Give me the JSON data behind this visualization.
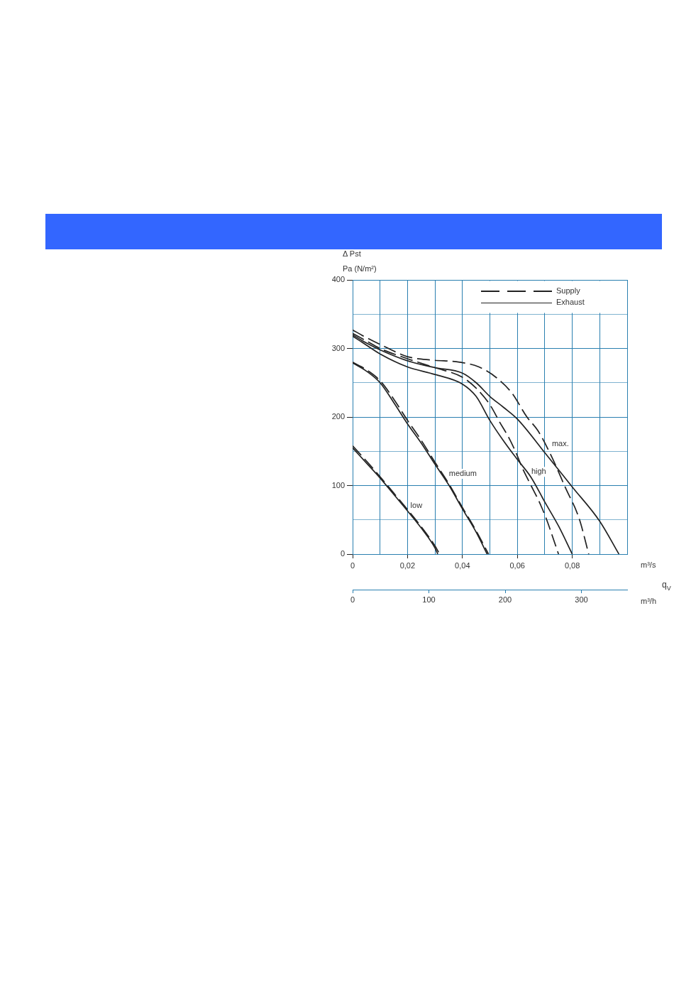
{
  "chart_data": {
    "type": "line",
    "ylabel": "Δ Pst\nPa (N/m²)",
    "xlabel": "m³/s",
    "x2label": "m³/h",
    "annotations": [
      "q$_{V}$",
      {
        "text": "low",
        "x": 0.0185,
        "y": 70
      },
      {
        "text": "medium",
        "x": 0.0325,
        "y": 117
      },
      {
        "text": "high",
        "x": 0.0625,
        "y": 120
      },
      {
        "text": "max.",
        "x": 0.07,
        "y": 161
      }
    ],
    "xlim": [
      0,
      0.1
    ],
    "xticks": [
      0,
      {
        "value": 0.01,
        "label": null
      },
      {
        "value": 0.02,
        "label": "0,02"
      },
      {
        "value": 0.03,
        "label": null
      },
      {
        "value": 0.04,
        "label": "0,04"
      },
      {
        "value": 0.05,
        "label": null
      },
      {
        "value": 0.06,
        "label": "0,06"
      },
      {
        "value": 0.07,
        "label": null
      },
      {
        "value": 0.08,
        "label": "0,08"
      },
      {
        "value": 0.09,
        "label": null
      },
      {
        "value": 0.1,
        "label": null
      }
    ],
    "ylim": [
      0,
      400
    ],
    "yticks": [
      0,
      {
        "value": 50,
        "label": null
      },
      100,
      {
        "value": 150,
        "label": null
      },
      200,
      {
        "value": 250,
        "label": null
      },
      300,
      {
        "value": 350,
        "label": null
      },
      400
    ],
    "x2lim": [
      0,
      360
    ],
    "x2ticks": [
      0,
      100,
      200,
      300
    ],
    "grid": true,
    "legend": "top right",
    "marker": "none",
    "series": [
      {
        "name": "Supply",
        "color": "#222222",
        "line_style": "dashed",
        "x": [
          0,
          0.005,
          0.01,
          0.015,
          0.02,
          0.025,
          0.03,
          0.0317
        ],
        "values": [
          158,
          136,
          113,
          89,
          65,
          40,
          12,
          0
        ]
      },
      {
        "name": "Exhaust",
        "color": "#222222",
        "line_style": "solid",
        "x": [
          0,
          0.005,
          0.01,
          0.015,
          0.02,
          0.025,
          0.03,
          0.031
        ],
        "values": [
          155,
          133,
          111,
          87,
          63,
          38,
          9,
          0
        ]
      },
      {
        "color": "#222222",
        "line_style": "dashed",
        "x": [
          0,
          0.005,
          0.01,
          0.015,
          0.02,
          0.025,
          0.03,
          0.035,
          0.04,
          0.045,
          0.0495
        ],
        "values": [
          280,
          269,
          253,
          226,
          195,
          166,
          134,
          103,
          68,
          34,
          0
        ]
      },
      {
        "color": "#222222",
        "line_style": "solid",
        "x": [
          0,
          0.005,
          0.01,
          0.015,
          0.02,
          0.025,
          0.03,
          0.035,
          0.04,
          0.045,
          0.049
        ],
        "values": [
          279,
          267,
          250,
          221,
          190,
          162,
          131,
          101,
          66,
          32,
          0
        ]
      },
      {
        "color": "#222222",
        "line_style": "dashed",
        "x": [
          0,
          0.005,
          0.01,
          0.02,
          0.03,
          0.04,
          0.045,
          0.05,
          0.0535,
          0.057,
          0.0595,
          0.062,
          0.065,
          0.068,
          0.0705,
          0.075
        ],
        "values": [
          322,
          311,
          300,
          285,
          272,
          258,
          242,
          218,
          193,
          169,
          148,
          124,
          100,
          76,
          52,
          0
        ]
      },
      {
        "color": "#222222",
        "line_style": "solid",
        "x": [
          0,
          0.005,
          0.01,
          0.02,
          0.03,
          0.04,
          0.045,
          0.05,
          0.055,
          0.06,
          0.065,
          0.07,
          0.075,
          0.08
        ],
        "values": [
          318,
          305,
          292,
          273,
          262,
          248,
          230,
          195,
          165,
          138,
          112,
          76,
          41,
          0
        ]
      },
      {
        "color": "#222222",
        "line_style": "dashed",
        "x": [
          0,
          0.004,
          0.012,
          0.02,
          0.029,
          0.039,
          0.046,
          0.0525,
          0.058,
          0.0635,
          0.0675,
          0.0725,
          0.0775,
          0.0825,
          0.086
        ],
        "values": [
          327,
          318,
          302,
          288,
          283,
          280,
          273,
          257,
          235,
          200,
          180,
          142,
          97,
          52,
          0
        ]
      },
      {
        "color": "#222222",
        "line_style": "solid",
        "x": [
          0,
          0.005,
          0.01,
          0.02,
          0.03,
          0.04,
          0.045,
          0.05,
          0.055,
          0.06,
          0.07,
          0.08,
          0.09,
          0.097
        ],
        "values": [
          320,
          308,
          298,
          282,
          272,
          264,
          250,
          230,
          214,
          197,
          148,
          98,
          48,
          0
        ]
      }
    ]
  }
}
